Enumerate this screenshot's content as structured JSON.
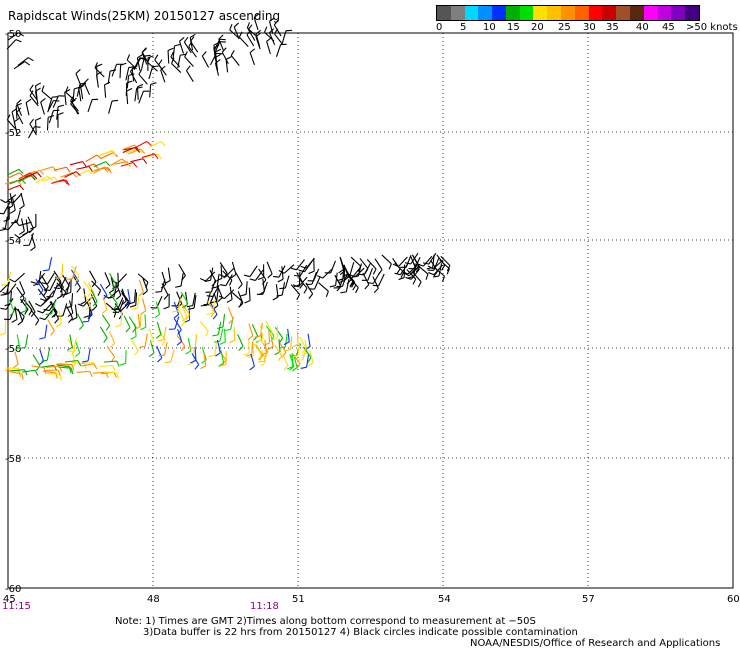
{
  "title": "Rapidscat Winds(25KM) 20150127 ascending",
  "legend": {
    "colors": [
      "#555555",
      "#7f7f7f",
      "#00d8ff",
      "#0090ff",
      "#0030ff",
      "#00b000",
      "#00e000",
      "#ffe000",
      "#ffc000",
      "#ff9000",
      "#ff6000",
      "#ff0000",
      "#c80000",
      "#a05028",
      "#5a2810",
      "#ff00ff",
      "#c000e0",
      "#8000c0",
      "#400080"
    ],
    "labels": [
      "0",
      "5",
      "10",
      "15",
      "20",
      "25",
      "30",
      "35",
      "40",
      "45",
      ">50 knots"
    ]
  },
  "axes": {
    "y_labels": [
      "-50",
      "-52",
      "-54",
      "-56",
      "-58",
      "-60"
    ],
    "x_labels": [
      "45",
      "48",
      "51",
      "54",
      "57",
      "60"
    ],
    "times": [
      "11:15",
      "11:18"
    ]
  },
  "notes": {
    "line1": "Note: 1) Times are GMT 2)Times along bottom correspond to measurement at −50S",
    "line2": "3)Data buffer is 22 hrs from 20150127 4) Black circles indicate possible contamination",
    "credit": "NOAA/NESDIS/Office of Research and Applications"
  }
}
